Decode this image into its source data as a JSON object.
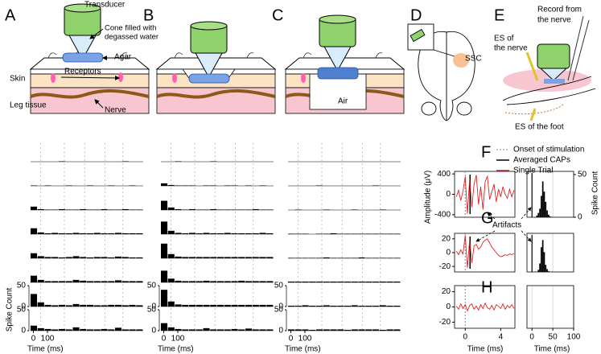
{
  "panel_letters": [
    "A",
    "B",
    "C",
    "D",
    "E",
    "F",
    "G",
    "H"
  ],
  "schematic": {
    "transducer": "Transducer",
    "cone": [
      "Cone filled with",
      "degassed water"
    ],
    "agar": "Agar",
    "skin": "Skin",
    "receptors": "Receptors",
    "leg_tissue": "Leg tissue",
    "nerve": "Nerve",
    "air": "Air",
    "ssc": "SSC",
    "record": [
      "Record from",
      "the nerve"
    ],
    "es_nerve": [
      "ES of",
      "the nerve"
    ],
    "es_foot": "ES of the foot"
  },
  "psth": {
    "y_label": "Spike Count",
    "x_label": "Time (ms)",
    "xlim": [
      -20,
      780
    ],
    "xticks": [
      0,
      100
    ],
    "ylim": [
      0,
      50
    ],
    "yticks": [
      0,
      50
    ],
    "columns": [
      [
        [
          0,
          0,
          0,
          0,
          1,
          0,
          0,
          0,
          0,
          0,
          0,
          0,
          0,
          1,
          0,
          0
        ],
        [
          1,
          0,
          1,
          0,
          0,
          1,
          0,
          0,
          1,
          0,
          0,
          1,
          0,
          0,
          1,
          0
        ],
        [
          8,
          2,
          1,
          1,
          2,
          1,
          1,
          2,
          1,
          1,
          2,
          1,
          1,
          2,
          1,
          1
        ],
        [
          14,
          4,
          2,
          3,
          2,
          2,
          3,
          2,
          2,
          3,
          2,
          2,
          3,
          2,
          2,
          2
        ],
        [
          12,
          5,
          3,
          3,
          2,
          3,
          5,
          3,
          2,
          3,
          3,
          2,
          4,
          3,
          2,
          2
        ],
        [
          16,
          6,
          3,
          3,
          3,
          3,
          6,
          4,
          3,
          3,
          3,
          3,
          5,
          3,
          3,
          3
        ],
        [
          30,
          10,
          4,
          3,
          4,
          3,
          6,
          4,
          4,
          3,
          3,
          4,
          4,
          3,
          4,
          3
        ],
        [
          12,
          6,
          4,
          3,
          4,
          3,
          8,
          4,
          3,
          3,
          4,
          3,
          7,
          3,
          3,
          3
        ]
      ],
      [
        [
          0,
          0,
          1,
          0,
          0,
          0,
          0,
          1,
          0,
          0,
          0,
          0,
          0,
          0,
          0,
          0
        ],
        [
          6,
          2,
          1,
          1,
          1,
          0,
          1,
          1,
          0,
          1,
          1,
          0,
          1,
          0,
          1,
          0
        ],
        [
          22,
          6,
          2,
          1,
          2,
          1,
          1,
          2,
          1,
          1,
          1,
          1,
          1,
          2,
          1,
          1
        ],
        [
          30,
          8,
          3,
          2,
          3,
          2,
          3,
          2,
          2,
          3,
          2,
          2,
          2,
          2,
          3,
          2
        ],
        [
          35,
          10,
          4,
          3,
          3,
          3,
          3,
          3,
          3,
          3,
          3,
          3,
          3,
          3,
          3,
          3
        ],
        [
          28,
          9,
          4,
          3,
          3,
          3,
          4,
          3,
          3,
          3,
          3,
          4,
          3,
          3,
          3,
          3
        ],
        [
          40,
          12,
          5,
          4,
          4,
          4,
          4,
          4,
          4,
          4,
          4,
          4,
          4,
          4,
          4,
          4
        ],
        [
          18,
          8,
          4,
          3,
          3,
          3,
          6,
          3,
          3,
          3,
          4,
          3,
          5,
          3,
          3,
          3
        ]
      ],
      [
        [
          0,
          0,
          0,
          0,
          0,
          0,
          0,
          0,
          0,
          0,
          0,
          0,
          0,
          0,
          0,
          0
        ],
        [
          0,
          0,
          0,
          0,
          1,
          0,
          0,
          0,
          0,
          0,
          0,
          0,
          1,
          0,
          0,
          0
        ],
        [
          0,
          1,
          0,
          0,
          0,
          1,
          0,
          0,
          0,
          1,
          0,
          0,
          0,
          1,
          0,
          0
        ],
        [
          1,
          1,
          1,
          0,
          1,
          1,
          2,
          1,
          1,
          1,
          1,
          1,
          1,
          1,
          1,
          1
        ],
        [
          1,
          1,
          1,
          1,
          1,
          2,
          1,
          1,
          1,
          1,
          2,
          1,
          1,
          1,
          1,
          1
        ],
        [
          2,
          2,
          2,
          2,
          2,
          2,
          2,
          2,
          2,
          2,
          2,
          2,
          2,
          2,
          2,
          2
        ],
        [
          2,
          2,
          3,
          2,
          2,
          3,
          2,
          2,
          2,
          3,
          2,
          2,
          2,
          3,
          2,
          2
        ],
        [
          3,
          3,
          3,
          2,
          3,
          3,
          3,
          3,
          2,
          3,
          3,
          3,
          3,
          2,
          3,
          3
        ]
      ]
    ]
  },
  "recordings": {
    "legend": [
      "Onset of stimulation",
      "Averaged CAPs",
      "Single Trial"
    ],
    "annotation": "Artifacts",
    "trace": {
      "y_label": "Amplitude (μV)",
      "x_label": "Time (ms)",
      "xlim": [
        -1.2,
        5.6
      ],
      "xticks": [
        0,
        4
      ],
      "t": [
        -1,
        -0.75,
        -0.5,
        -0.25,
        0,
        0.25,
        0.5,
        0.75,
        1,
        1.25,
        1.5,
        1.75,
        2,
        2.25,
        2.5,
        2.75,
        3,
        3.25,
        3.5,
        3.75,
        4,
        4.25,
        4.5,
        4.75,
        5,
        5.25,
        5.5
      ],
      "panels": [
        {
          "ylim": [
            -450,
            450
          ],
          "yticks": [
            -400,
            0,
            400
          ],
          "values": [
            -50,
            80,
            -120,
            60,
            350,
            -380,
            300,
            -250,
            200,
            380,
            -200,
            150,
            -300,
            250,
            350,
            -100,
            50,
            200,
            -150,
            100,
            -50,
            150,
            0,
            -80,
            100,
            -50,
            80
          ]
        },
        {
          "ylim": [
            -28,
            28
          ],
          "yticks": [
            -20,
            0,
            20
          ],
          "values": [
            2,
            -3,
            4,
            -2,
            25,
            -22,
            18,
            -15,
            10,
            12,
            5,
            8,
            15,
            18,
            20,
            14,
            8,
            4,
            0,
            -4,
            -6,
            -5,
            -3,
            -4,
            -2,
            -3,
            -1
          ]
        },
        {
          "ylim": [
            -28,
            28
          ],
          "yticks": [
            -20,
            0,
            20
          ],
          "values": [
            1,
            -3,
            4,
            -2,
            3,
            -5,
            2,
            4,
            -3,
            1,
            -4,
            3,
            -2,
            5,
            -1,
            -3,
            2,
            -4,
            3,
            1,
            -2,
            4,
            -3,
            2,
            -1,
            3,
            -2
          ]
        }
      ]
    },
    "hist": {
      "y_label": "Spike Count",
      "x_label": "Time (ms)",
      "xlim": [
        -12,
        100
      ],
      "xticks": [
        0,
        50,
        100
      ],
      "ylim": [
        0,
        50
      ],
      "yticks": [
        0,
        50
      ],
      "panels": [
        {
          "values": [
            0,
            0,
            0,
            0,
            0,
            2,
            5,
            10,
            25,
            42,
            30,
            18,
            8,
            3,
            1,
            0,
            0,
            0,
            0,
            0
          ]
        },
        {
          "values": [
            0,
            0,
            0,
            0,
            0,
            0,
            3,
            12,
            35,
            45,
            28,
            10,
            4,
            1,
            0,
            0,
            0,
            0,
            0,
            0
          ]
        },
        {
          "values": [
            0,
            0,
            0,
            0,
            0,
            0,
            0,
            0,
            0,
            0,
            0,
            0,
            0,
            0,
            0,
            0,
            0,
            0,
            0,
            0
          ]
        }
      ]
    }
  }
}
